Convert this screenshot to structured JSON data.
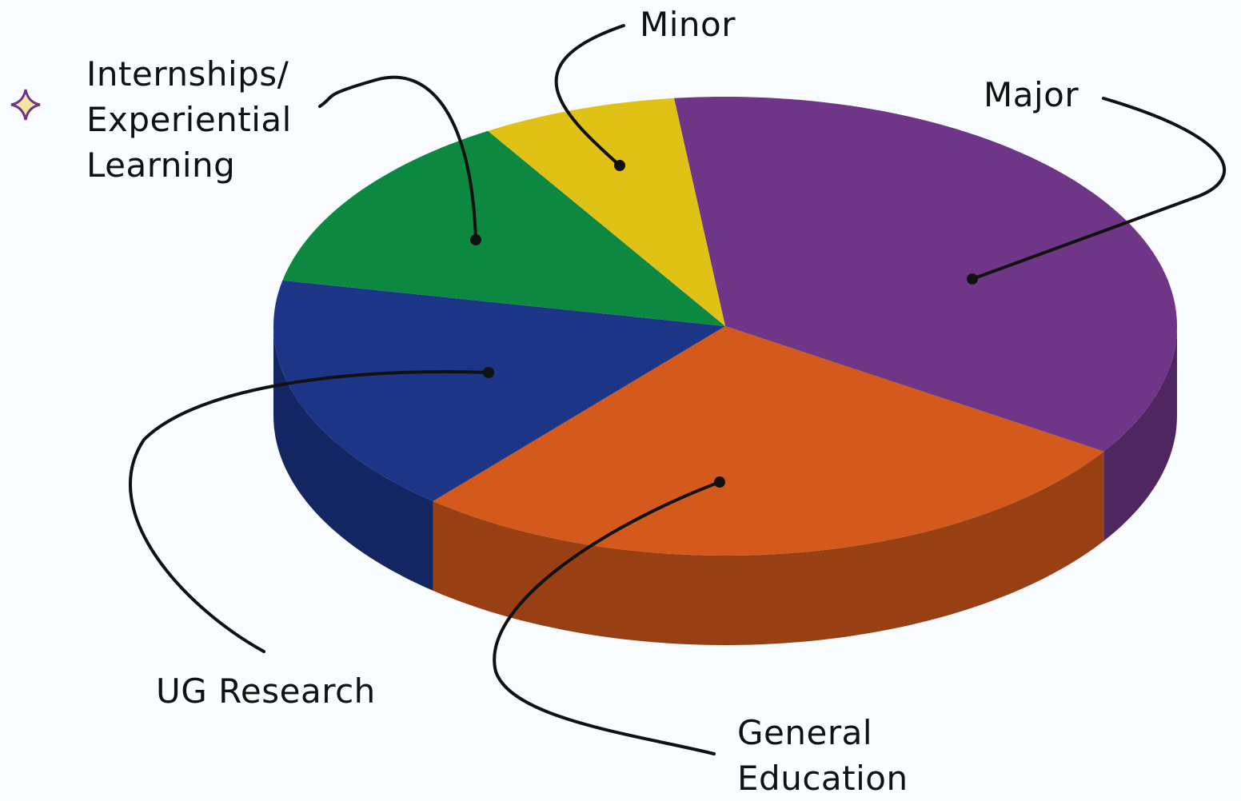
{
  "chart_data": {
    "type": "pie",
    "categories": [
      "Major",
      "General Education",
      "UG Research",
      "Internships/ Experiential Learning",
      "Minor"
    ],
    "values": [
      36,
      27,
      17,
      13,
      7
    ],
    "colors": [
      "#6f3587",
      "#d3591c",
      "#1c3587",
      "#0d8840",
      "#e0c116"
    ]
  }
}
